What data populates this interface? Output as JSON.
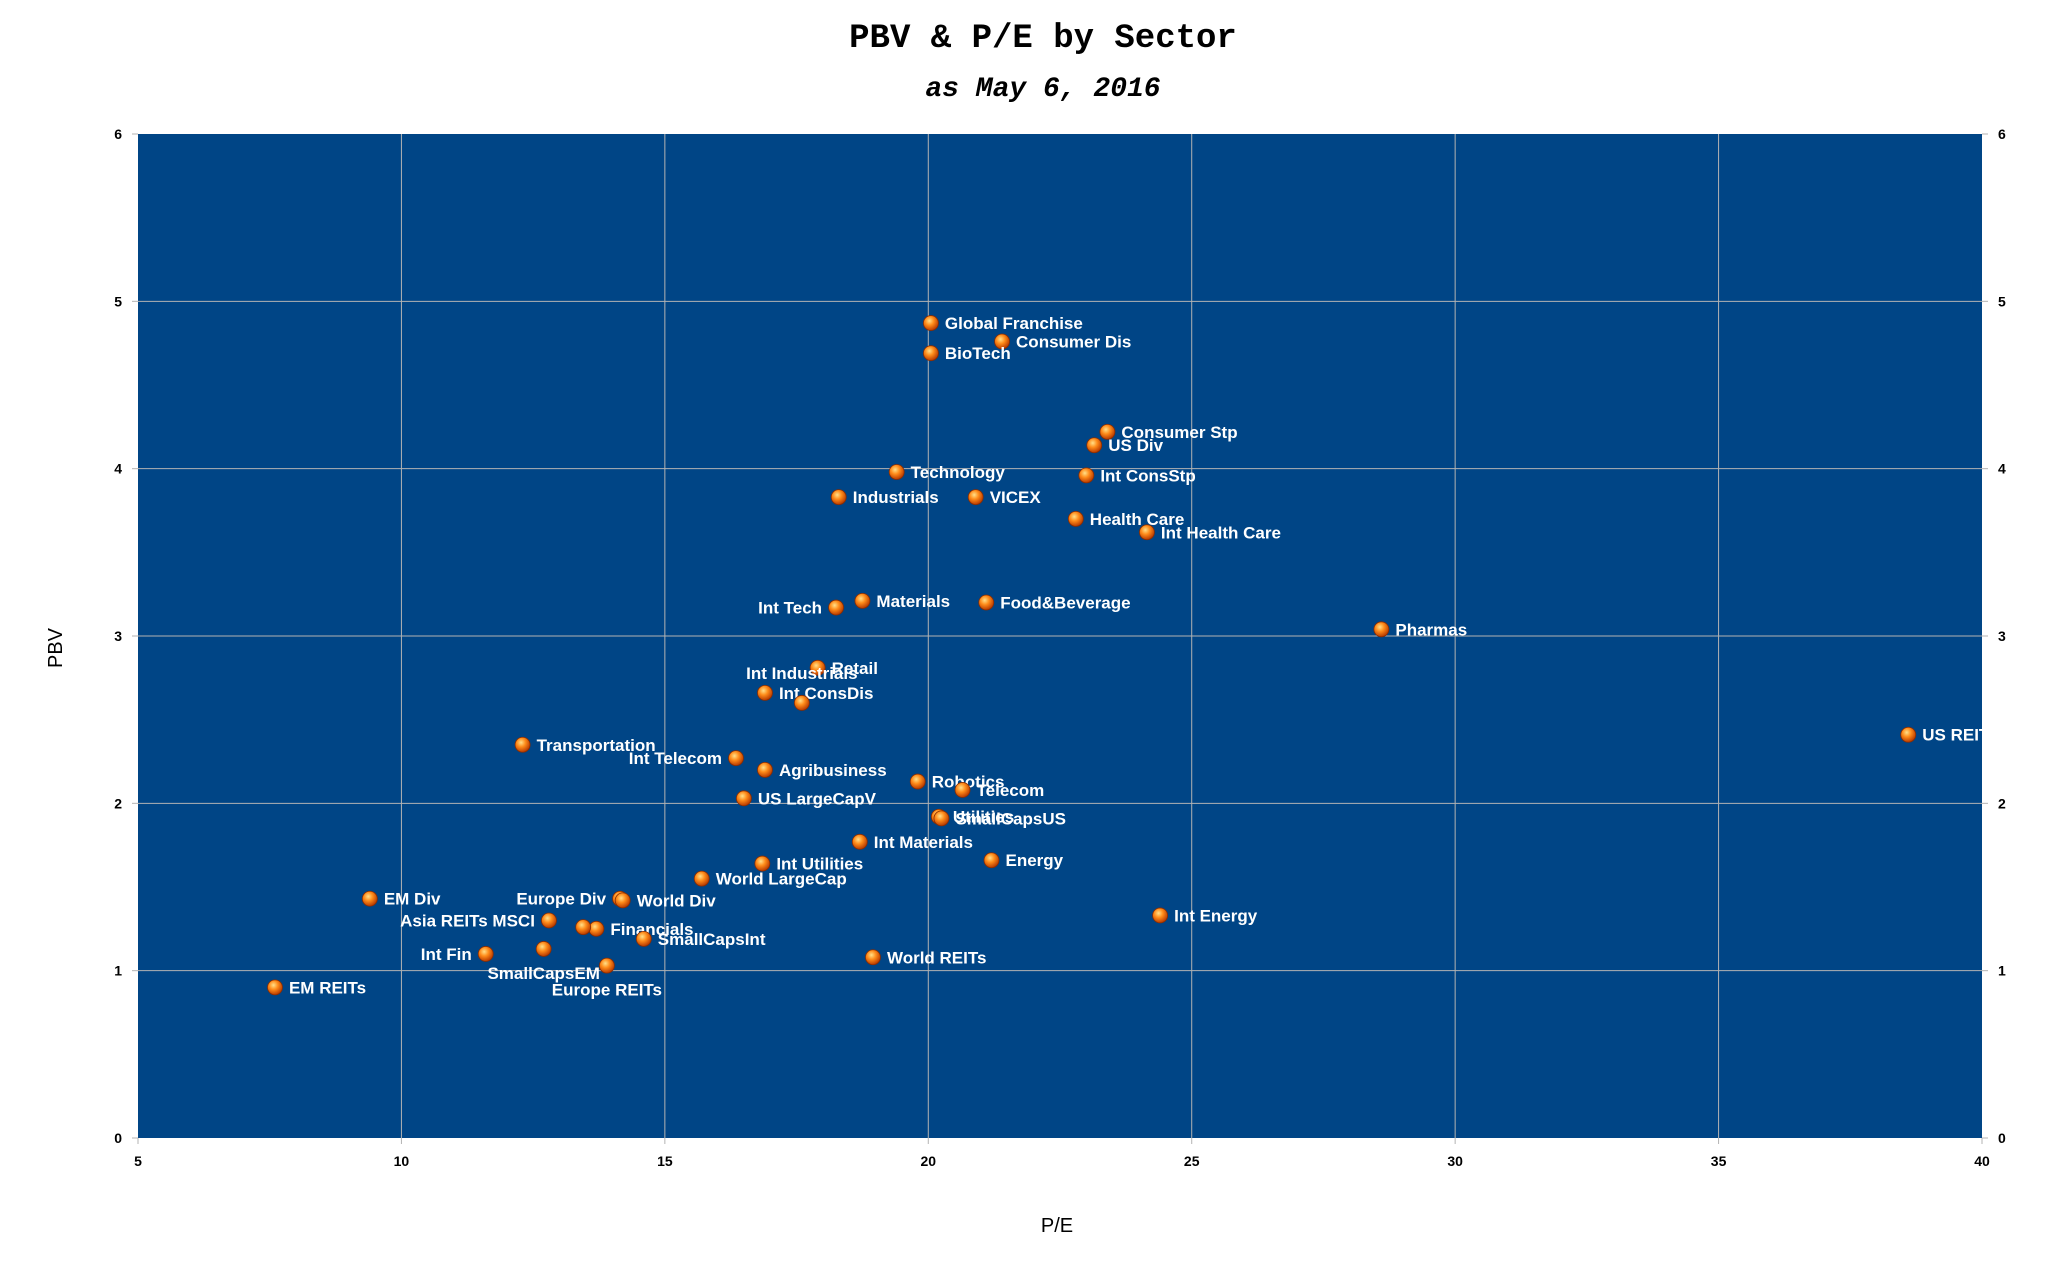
{
  "chart_data": {
    "type": "scatter",
    "title": "PBV & P/E by Sector",
    "subtitle": "as May 6, 2016",
    "xlabel": "P/E",
    "ylabel": "PBV",
    "xlim": [
      5,
      40
    ],
    "ylim": [
      0,
      6
    ],
    "xticks": [
      5,
      10,
      15,
      20,
      25,
      30,
      35,
      40
    ],
    "yticks": [
      0,
      1,
      2,
      3,
      4,
      5,
      6
    ],
    "grid": true,
    "colors": {
      "plot_background": "#004586",
      "grid": "#b3b3b3",
      "marker": "#ff8c1a",
      "label": "#ffffff"
    },
    "points": [
      {
        "label": "Global Franchise",
        "x": 20.05,
        "y": 4.87
      },
      {
        "label": "Consumer Dis",
        "x": 21.4,
        "y": 4.76
      },
      {
        "label": "BioTech",
        "x": 20.05,
        "y": 4.69
      },
      {
        "label": "Consumer Stp",
        "x": 23.4,
        "y": 4.22
      },
      {
        "label": "US Div",
        "x": 23.15,
        "y": 4.14
      },
      {
        "label": "Technology",
        "x": 19.4,
        "y": 3.98
      },
      {
        "label": "Int ConsStp",
        "x": 23.0,
        "y": 3.96
      },
      {
        "label": "Industrials",
        "x": 18.3,
        "y": 3.83
      },
      {
        "label": "VICEX",
        "x": 20.9,
        "y": 3.83
      },
      {
        "label": "Health Care",
        "x": 22.8,
        "y": 3.7
      },
      {
        "label": "Int Health Care",
        "x": 24.15,
        "y": 3.62
      },
      {
        "label": "Int Tech",
        "x": 18.25,
        "y": 3.17
      },
      {
        "label": "Materials",
        "x": 18.75,
        "y": 3.21
      },
      {
        "label": "Food&Beverage",
        "x": 21.1,
        "y": 3.2
      },
      {
        "label": "Pharmas",
        "x": 28.6,
        "y": 3.04
      },
      {
        "label": "Retail",
        "x": 17.9,
        "y": 2.81
      },
      {
        "label": "Int ConsDis",
        "x": 16.9,
        "y": 2.66
      },
      {
        "label": "Int Industrials",
        "x": 17.6,
        "y": 2.6
      },
      {
        "label": "US REITs",
        "x": 38.6,
        "y": 2.41
      },
      {
        "label": "Transportation",
        "x": 12.3,
        "y": 2.35
      },
      {
        "label": "Int Telecom",
        "x": 16.35,
        "y": 2.27
      },
      {
        "label": "Agribusiness",
        "x": 16.9,
        "y": 2.2
      },
      {
        "label": "Robotics",
        "x": 19.8,
        "y": 2.13
      },
      {
        "label": "Telecom",
        "x": 20.65,
        "y": 2.08
      },
      {
        "label": "US LargeCapV",
        "x": 16.5,
        "y": 2.03
      },
      {
        "label": "Utilities",
        "x": 20.2,
        "y": 1.92
      },
      {
        "label": "SmallCapsUS",
        "x": 20.25,
        "y": 1.91
      },
      {
        "label": "Int Materials",
        "x": 18.7,
        "y": 1.77
      },
      {
        "label": "Energy",
        "x": 21.2,
        "y": 1.66
      },
      {
        "label": "Int Utilities",
        "x": 16.85,
        "y": 1.64
      },
      {
        "label": "World LargeCap",
        "x": 15.7,
        "y": 1.55
      },
      {
        "label": "EM Div",
        "x": 9.4,
        "y": 1.43
      },
      {
        "label": "Europe Div",
        "x": 14.15,
        "y": 1.43
      },
      {
        "label": "World Div",
        "x": 14.2,
        "y": 1.42
      },
      {
        "label": "Int Energy",
        "x": 24.4,
        "y": 1.33
      },
      {
        "label": "Asia REITs MSCI",
        "x": 12.8,
        "y": 1.3
      },
      {
        "label": "Financials",
        "x": 13.7,
        "y": 1.25
      },
      {
        "label": "SmallCapsInt",
        "x": 14.6,
        "y": 1.19
      },
      {
        "label": "",
        "x": 13.45,
        "y": 1.26
      },
      {
        "label": "Int Fin",
        "x": 11.6,
        "y": 1.1
      },
      {
        "label": "SmallCapsEM",
        "x": 12.7,
        "y": 1.13
      },
      {
        "label": "World REITs",
        "x": 18.95,
        "y": 1.08
      },
      {
        "label": "Europe REITs",
        "x": 13.9,
        "y": 1.03
      },
      {
        "label": "EM REITs",
        "x": 7.6,
        "y": 0.9
      }
    ]
  }
}
